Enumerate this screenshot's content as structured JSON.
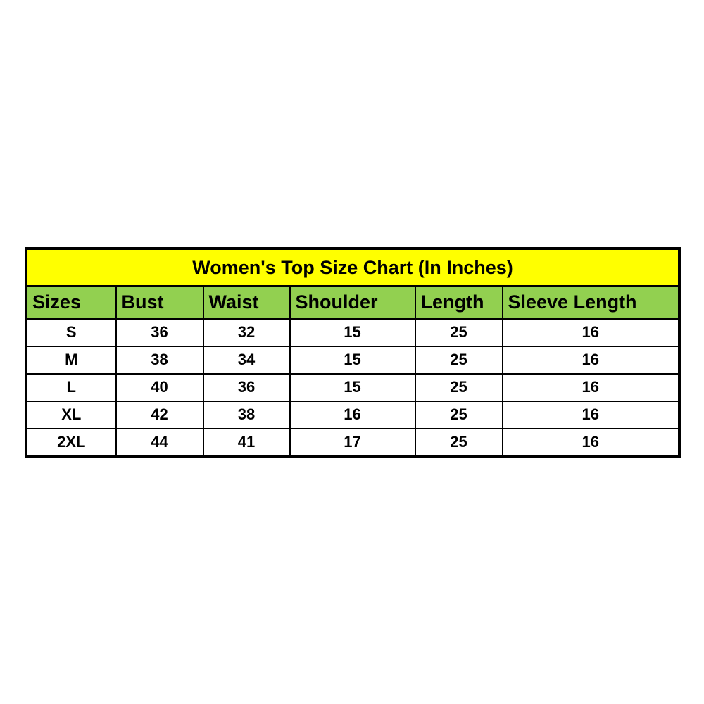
{
  "colors": {
    "title_bg": "#ffff00",
    "header_bg": "#92d050",
    "border": "#000000",
    "text": "#000000",
    "page_bg": "#ffffff"
  },
  "chart_data": {
    "type": "table",
    "title": "Women's Top Size Chart (In Inches)",
    "units": "Inches",
    "columns": [
      "Sizes",
      "Bust",
      "Waist",
      "Shoulder",
      "Length",
      "Sleeve Length"
    ],
    "rows": [
      [
        "S",
        "36",
        "32",
        "15",
        "25",
        "16"
      ],
      [
        "M",
        "38",
        "34",
        "15",
        "25",
        "16"
      ],
      [
        "L",
        "40",
        "36",
        "15",
        "25",
        "16"
      ],
      [
        "XL",
        "42",
        "38",
        "16",
        "25",
        "16"
      ],
      [
        "2XL",
        "44",
        "41",
        "17",
        "25",
        "16"
      ]
    ]
  }
}
